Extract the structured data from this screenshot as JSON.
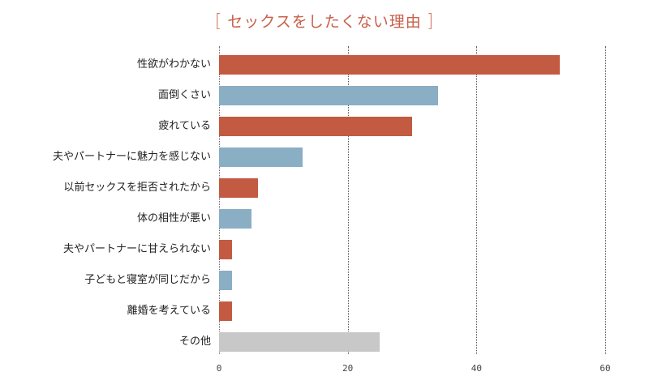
{
  "title": "セックスをしたくない理由",
  "colors": {
    "primary": "#c35b42",
    "secondary": "#8aaec4",
    "other": "#c8c8c8",
    "title": "#c8604a"
  },
  "chart_data": {
    "type": "bar",
    "orientation": "horizontal",
    "title": "セックスをしたくない理由",
    "xlabel": "",
    "ylabel": "",
    "xlim": [
      0,
      60
    ],
    "xticks": [
      0,
      20,
      40,
      60
    ],
    "grid": "vertical dotted",
    "legend": "none",
    "categories": [
      "性欲がわかない",
      "面倒くさい",
      "疲れている",
      "夫やパートナーに魅力を感じない",
      "以前セックスを拒否されたから",
      "体の相性が悪い",
      "夫やパートナーに甘えられない",
      "子どもと寝室が同じだから",
      "離婚を考えている",
      "その他"
    ],
    "values": [
      53,
      34,
      30,
      13,
      6,
      5,
      2,
      2,
      2,
      25
    ],
    "bar_colors": [
      "#c35b42",
      "#8aaec4",
      "#c35b42",
      "#8aaec4",
      "#c35b42",
      "#8aaec4",
      "#c35b42",
      "#8aaec4",
      "#c35b42",
      "#c8c8c8"
    ]
  }
}
